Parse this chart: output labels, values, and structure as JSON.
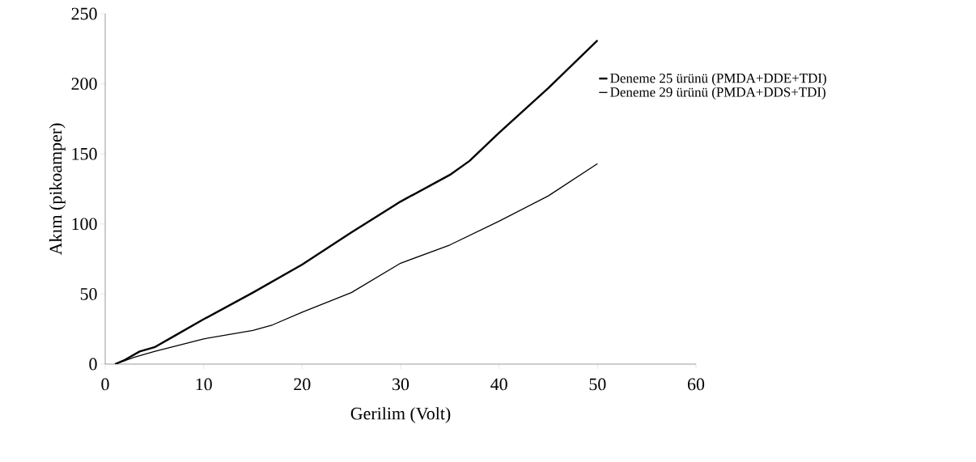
{
  "chart_data": {
    "type": "line",
    "xlabel": "Gerilim (Volt)",
    "ylabel": "Akım (pikoamper)",
    "series": [
      {
        "name": "Deneme 25 ürünü (PMDA+DDE+TDI)",
        "color": "#000000",
        "x": [
          1,
          2,
          3.5,
          5,
          7,
          10,
          15,
          20,
          25,
          30,
          35,
          37,
          40,
          45,
          50
        ],
        "values": [
          0,
          3,
          9,
          12,
          20,
          32,
          51,
          71,
          94,
          116,
          135,
          145,
          165,
          197,
          231
        ]
      },
      {
        "name": "Deneme 29 ürünü (PMDA+DDS+TDI)",
        "color": "#000000",
        "x": [
          1,
          3,
          5,
          10,
          15,
          17,
          20,
          25,
          30,
          35,
          40,
          45,
          50
        ],
        "values": [
          0,
          5,
          9,
          18,
          24,
          28,
          37,
          51,
          72,
          85,
          102,
          120,
          143
        ]
      }
    ],
    "xlim": [
      0,
      60
    ],
    "ylim": [
      0,
      250
    ],
    "xticks": [
      0,
      10,
      20,
      30,
      40,
      50,
      60
    ],
    "yticks": [
      0,
      50,
      100,
      150,
      200,
      250
    ],
    "grid": false,
    "legend": "right",
    "marker": "none",
    "line_style": "solid"
  }
}
